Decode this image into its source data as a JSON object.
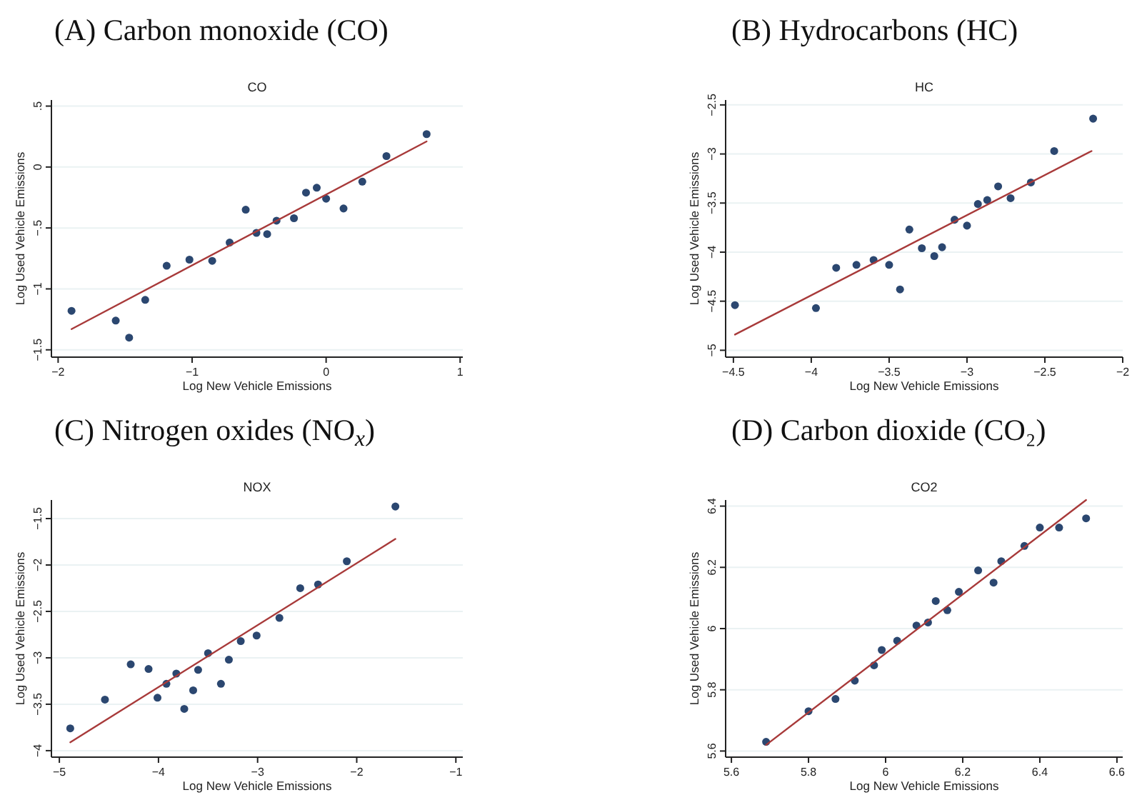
{
  "chart_data": [
    {
      "type": "scatter",
      "title": "(A) Carbon monoxide (CO)",
      "subtitle": "CO",
      "xlabel": "Log New Vehicle Emissions",
      "ylabel": "Log Used Vehicle Emissions",
      "xlim": [
        -2.05,
        1.02
      ],
      "ylim": [
        -1.56,
        0.55
      ],
      "xticks": [
        {
          "value": -2,
          "label": "−2"
        },
        {
          "value": -1,
          "label": "−1"
        },
        0,
        1
      ],
      "yticks": [
        {
          "value": -1.5,
          "label": "−1.5"
        },
        {
          "value": -1,
          "label": "−1"
        },
        {
          "value": -0.5,
          "label": "−.5"
        },
        0,
        {
          "value": 0.5,
          "label": ".5"
        }
      ],
      "grid": "y",
      "series": [
        {
          "marker": "circle",
          "color": "#2b4770",
          "x": [
            -1.9,
            -1.57,
            -1.47,
            -1.35,
            -1.19,
            -1.02,
            -0.85,
            -0.72,
            -0.6,
            -0.52,
            -0.44,
            -0.37,
            -0.24,
            -0.15,
            -0.07,
            0.0,
            0.13,
            0.27,
            0.45,
            0.75
          ],
          "values": [
            -1.18,
            -1.26,
            -1.4,
            -1.09,
            -0.81,
            -0.76,
            -0.77,
            -0.62,
            -0.35,
            -0.54,
            -0.55,
            -0.44,
            -0.42,
            -0.21,
            -0.17,
            -0.26,
            -0.34,
            -0.12,
            0.09,
            0.27
          ]
        },
        {
          "type": "line",
          "marker": "none",
          "color": "#a83a3a",
          "x": [
            -1.9,
            0.75
          ],
          "values": [
            -1.33,
            0.21
          ]
        }
      ]
    },
    {
      "type": "scatter",
      "title": "(B) Hydrocarbons (HC)",
      "subtitle": "HC",
      "xlabel": "Log New Vehicle Emissions",
      "ylabel": "Log Used Vehicle Emissions",
      "xlim": [
        -4.55,
        -2
      ],
      "ylim": [
        -5.07,
        -2.45
      ],
      "xticks": [
        {
          "value": -4.5,
          "label": "−4.5"
        },
        {
          "value": -4,
          "label": "−4"
        },
        {
          "value": -3.5,
          "label": "−3.5"
        },
        {
          "value": -3,
          "label": "−3"
        },
        {
          "value": -2.5,
          "label": "−2.5"
        },
        {
          "value": -2,
          "label": "−2"
        }
      ],
      "yticks": [
        {
          "value": -5,
          "label": "−5"
        },
        {
          "value": -4.5,
          "label": "−4.5"
        },
        {
          "value": -4,
          "label": "−4"
        },
        {
          "value": -3.5,
          "label": "−3.5"
        },
        {
          "value": -3,
          "label": "−3"
        },
        {
          "value": -2.5,
          "label": "−2.5"
        }
      ],
      "grid": "y",
      "series": [
        {
          "marker": "circle",
          "color": "#2b4770",
          "x": [
            -4.49,
            -3.97,
            -3.84,
            -3.71,
            -3.6,
            -3.5,
            -3.43,
            -3.37,
            -3.29,
            -3.21,
            -3.16,
            -3.08,
            -3.0,
            -2.93,
            -2.87,
            -2.8,
            -2.72,
            -2.59,
            -2.44,
            -2.19
          ],
          "values": [
            -4.54,
            -4.57,
            -4.16,
            -4.13,
            -4.08,
            -4.13,
            -4.38,
            -3.77,
            -3.96,
            -4.04,
            -3.95,
            -3.67,
            -3.73,
            -3.51,
            -3.47,
            -3.33,
            -3.45,
            -3.29,
            -2.97,
            -2.64
          ]
        },
        {
          "type": "line",
          "marker": "none",
          "color": "#a83a3a",
          "x": [
            -4.49,
            -2.2
          ],
          "values": [
            -4.84,
            -2.97
          ]
        }
      ]
    },
    {
      "type": "scatter",
      "title": "(C) Nitrogen oxides (NO$_{x}$)",
      "subtitle": "NOX",
      "xlabel": "Log New Vehicle Emissions",
      "ylabel": "Log Used Vehicle Emissions",
      "xlim": [
        -5.08,
        -0.93
      ],
      "ylim": [
        -4.07,
        -1.3
      ],
      "xticks": [
        {
          "value": -5,
          "label": "−5"
        },
        {
          "value": -4,
          "label": "−4"
        },
        {
          "value": -3,
          "label": "−3"
        },
        {
          "value": -2,
          "label": "−2"
        },
        {
          "value": -1,
          "label": "−1"
        }
      ],
      "yticks": [
        {
          "value": -4,
          "label": "−4"
        },
        {
          "value": -3.5,
          "label": "−3.5"
        },
        {
          "value": -3,
          "label": "−3"
        },
        {
          "value": -2.5,
          "label": "−2.5"
        },
        {
          "value": -2,
          "label": "−2"
        },
        {
          "value": -1.5,
          "label": "−1.5"
        }
      ],
      "grid": "y",
      "series": [
        {
          "marker": "circle",
          "color": "#2b4770",
          "x": [
            -4.89,
            -4.54,
            -4.28,
            -4.1,
            -4.01,
            -3.92,
            -3.82,
            -3.74,
            -3.65,
            -3.6,
            -3.5,
            -3.37,
            -3.29,
            -3.17,
            -3.01,
            -2.78,
            -2.57,
            -2.39,
            -2.1,
            -1.61
          ],
          "values": [
            -3.76,
            -3.45,
            -3.07,
            -3.12,
            -3.43,
            -3.28,
            -3.17,
            -3.55,
            -3.35,
            -3.13,
            -2.95,
            -3.28,
            -3.02,
            -2.82,
            -2.76,
            -2.57,
            -2.25,
            -2.21,
            -1.96,
            -1.37
          ]
        },
        {
          "type": "line",
          "marker": "none",
          "color": "#a83a3a",
          "x": [
            -4.89,
            -1.61
          ],
          "values": [
            -3.91,
            -1.72
          ]
        }
      ]
    },
    {
      "type": "scatter",
      "title": "(D) Carbon dioxide (CO₂)",
      "subtitle": "CO2",
      "xlabel": "Log New Vehicle Emissions",
      "ylabel": "Log Used Vehicle Emissions",
      "xlim": [
        5.585,
        6.615
      ],
      "ylim": [
        5.58,
        6.42
      ],
      "xticks": [
        5.6,
        5.8,
        6,
        6.2,
        6.4,
        6.6
      ],
      "yticks": [
        5.6,
        5.8,
        6,
        6.2,
        6.4
      ],
      "grid": "y",
      "series": [
        {
          "marker": "circle",
          "color": "#2b4770",
          "x": [
            5.69,
            5.8,
            5.87,
            5.92,
            5.97,
            5.99,
            6.03,
            6.08,
            6.11,
            6.13,
            6.16,
            6.19,
            6.24,
            6.28,
            6.3,
            6.36,
            6.4,
            6.45,
            6.52
          ],
          "values": [
            5.63,
            5.73,
            5.77,
            5.83,
            5.88,
            5.93,
            5.96,
            6.01,
            6.02,
            6.09,
            6.06,
            6.12,
            6.19,
            6.15,
            6.22,
            6.27,
            6.33,
            6.33,
            6.36
          ]
        },
        {
          "type": "line",
          "marker": "none",
          "color": "#a83a3a",
          "x": [
            5.69,
            6.52
          ],
          "values": [
            5.62,
            6.42
          ]
        }
      ]
    }
  ]
}
